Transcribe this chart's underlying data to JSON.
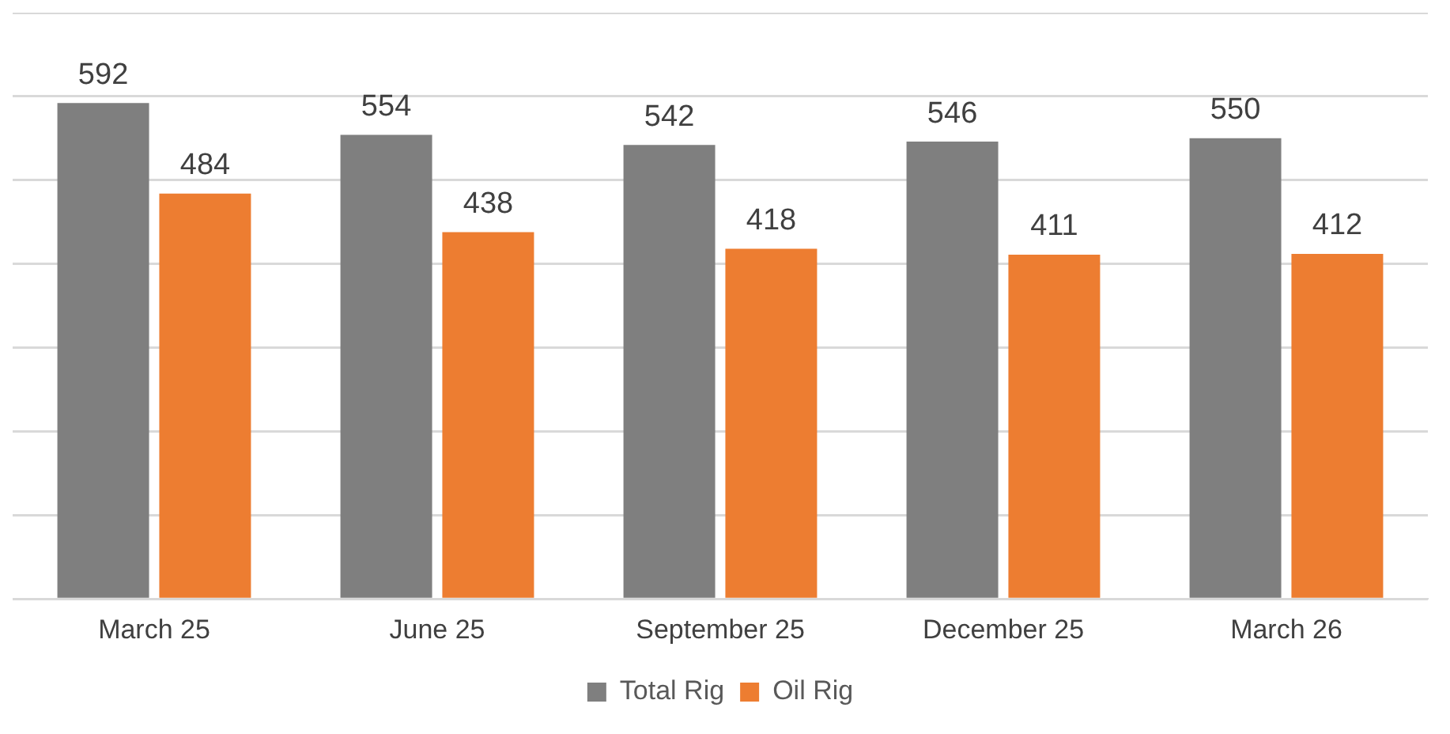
{
  "chart_data": {
    "type": "bar",
    "categories": [
      "March 25",
      "June 25",
      "September 25",
      "December 25",
      "March 26"
    ],
    "series": [
      {
        "name": "Total Rig",
        "color": "#7f7f7f",
        "values": [
          592,
          554,
          542,
          546,
          550
        ]
      },
      {
        "name": "Oil Rig",
        "color": "#ed7d31",
        "values": [
          484,
          438,
          418,
          411,
          412
        ]
      }
    ],
    "ylim": [
      0,
      700
    ],
    "yticks": [
      {
        "value": 0,
        "label": null
      },
      {
        "value": 100,
        "label": null
      },
      {
        "value": 200,
        "label": null
      },
      {
        "value": 300,
        "label": null
      },
      {
        "value": 400,
        "label": null
      },
      {
        "value": 500,
        "label": null
      },
      {
        "value": 600,
        "label": null
      },
      {
        "value": 700,
        "label": null
      }
    ],
    "tick_labels": "x",
    "grid": "y",
    "legend": "bottom",
    "data_labels": true
  }
}
